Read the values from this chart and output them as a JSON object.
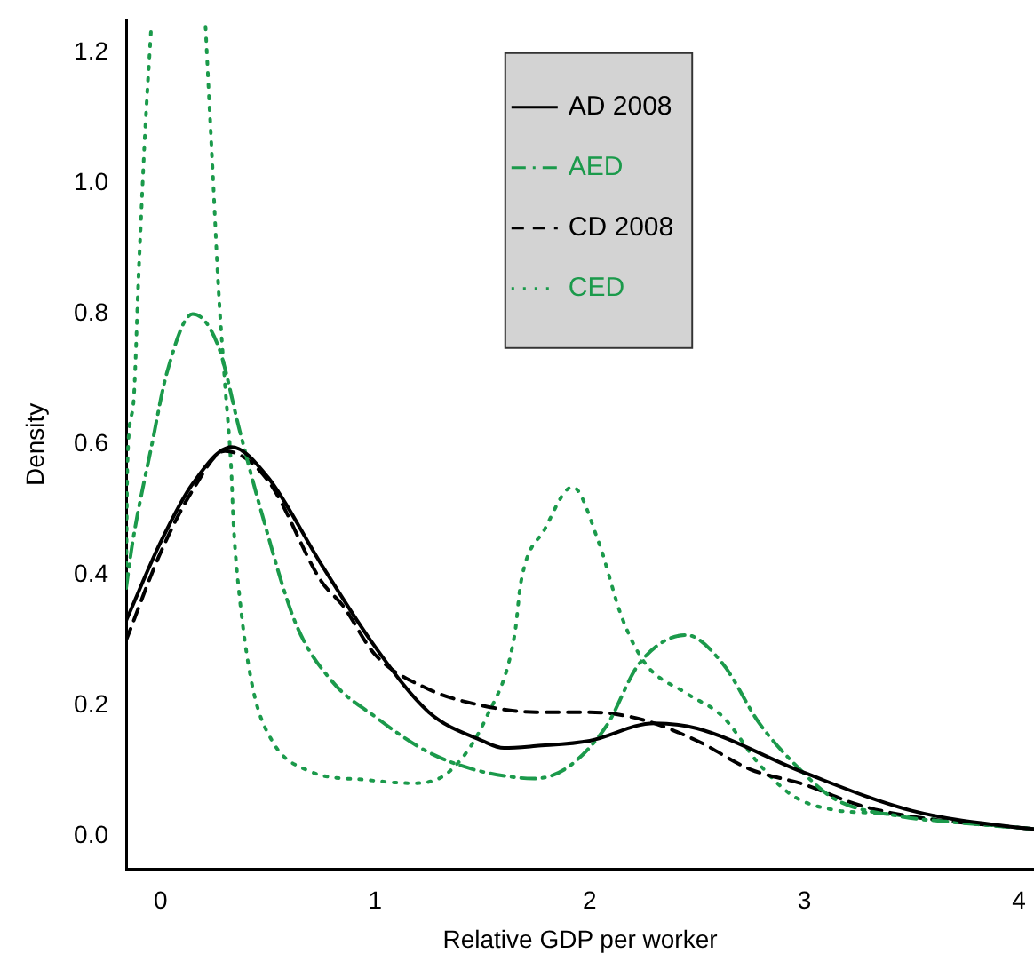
{
  "chart_data": {
    "type": "line",
    "xlabel": "Relative GDP per worker",
    "ylabel": "Density",
    "xlim": [
      -0.16,
      4.07
    ],
    "ylim": [
      -0.05,
      1.25
    ],
    "xticks": [
      0,
      1,
      2,
      3,
      4
    ],
    "yticks": [
      {
        "value": 0,
        "label": "0.0"
      },
      {
        "value": 0.2,
        "label": "0.2"
      },
      {
        "value": 0.4,
        "label": "0.4"
      },
      {
        "value": 0.6,
        "label": "0.6"
      },
      {
        "value": 0.8,
        "label": "0.8"
      },
      {
        "value": 1,
        "label": "1.0"
      },
      {
        "value": 1.2,
        "label": "1.2"
      }
    ],
    "grid": false,
    "legend": "top",
    "marker": "none",
    "series": [
      {
        "name": "AD 2008",
        "color": "#000000",
        "line_style": "solid",
        "x": [
          -0.16,
          0,
          0.15,
          0.33,
          0.5,
          0.75,
          1,
          1.25,
          1.5,
          1.6,
          1.75,
          2,
          2.3,
          2.5,
          3,
          3.5,
          4,
          4.07
        ],
        "values": [
          0.33,
          0.45,
          0.54,
          0.596,
          0.55,
          0.416,
          0.29,
          0.19,
          0.146,
          0.135,
          0.138,
          0.146,
          0.173,
          0.165,
          0.097,
          0.039,
          0.013,
          0.011
        ]
      },
      {
        "name": "AED",
        "color": "#1b9a4b",
        "line_style": "dashdot",
        "x": [
          -0.16,
          -0.13,
          -0.04,
          0.03,
          0.15,
          0.27,
          0.37,
          0.47,
          0.63,
          0.8,
          1,
          1.24,
          1.46,
          1.68,
          1.74,
          1.9,
          2.08,
          2.23,
          2.45,
          2.62,
          2.79,
          2.98,
          3.14,
          3.45,
          3.67,
          4.07
        ],
        "values": [
          0.38,
          0.45,
          0.6,
          0.71,
          0.8,
          0.75,
          0.62,
          0.497,
          0.326,
          0.237,
          0.183,
          0.13,
          0.102,
          0.089,
          0.088,
          0.106,
          0.17,
          0.264,
          0.308,
          0.264,
          0.173,
          0.102,
          0.057,
          0.03,
          0.022,
          0.011
        ]
      },
      {
        "name": "CD 2008",
        "color": "#000000",
        "line_style": "dashed",
        "x": [
          -0.16,
          0,
          0.15,
          0.3,
          0.5,
          0.75,
          0.85,
          1,
          1.25,
          1.5,
          1.75,
          2,
          2.25,
          2.5,
          2.75,
          3,
          3.25,
          3.5,
          4,
          4.07
        ],
        "values": [
          0.3,
          0.434,
          0.53,
          0.59,
          0.545,
          0.39,
          0.353,
          0.278,
          0.225,
          0.2,
          0.19,
          0.19,
          0.178,
          0.146,
          0.102,
          0.079,
          0.048,
          0.03,
          0.013,
          0.011
        ]
      },
      {
        "name": "CED",
        "color": "#1b9a4b",
        "line_style": "dotted",
        "x": [
          -0.16,
          -0.154,
          -0.127,
          -0.1,
          -0.07,
          -0.044,
          -0.035,
          0.08,
          0.205,
          0.21,
          0.246,
          0.27,
          0.3,
          0.33,
          0.34,
          0.37,
          0.43,
          0.52,
          0.69,
          0.96,
          1.18,
          1.35,
          1.52,
          1.65,
          1.68,
          1.79,
          1.92,
          2.04,
          2.15,
          2.26,
          2.45,
          2.62,
          2.79,
          2.95,
          3.14,
          3.35,
          3.7,
          4.07
        ],
        "values": [
          0.38,
          0.57,
          0.66,
          0.875,
          1.09,
          1.235,
          null,
          null,
          null,
          1.24,
          1,
          0.84,
          0.695,
          0.56,
          0.48,
          0.362,
          0.227,
          0.146,
          0.1,
          0.086,
          0.081,
          0.1,
          0.183,
          0.308,
          0.39,
          0.47,
          0.535,
          0.452,
          0.335,
          0.264,
          0.219,
          0.183,
          0.11,
          0.061,
          0.04,
          0.035,
          0.022,
          0.011
        ]
      }
    ]
  }
}
